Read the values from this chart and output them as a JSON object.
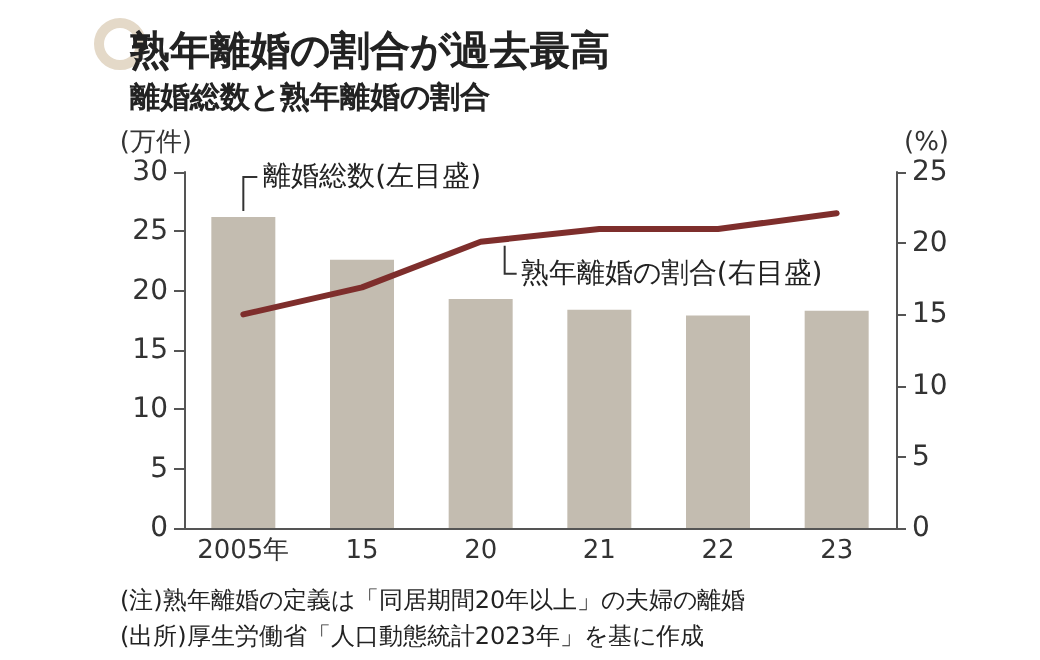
{
  "chart_data": {
    "type": "bar",
    "title": "熟年離婚の割合が過去最高",
    "subtitle": "離婚総数と熟年離婚の割合",
    "ylabel": "(万件)",
    "y2label": "(%)",
    "categories": [
      "2005年",
      "15",
      "20",
      "21",
      "22",
      "23"
    ],
    "series": [
      {
        "name": "離婚総数(左目盛)",
        "color": "#c3bcb0",
        "values": [
          26.2,
          22.6,
          19.3,
          18.4,
          17.9,
          18.3
        ]
      },
      {
        "name": "熟年離婚の割合(右目盛)",
        "type": "line",
        "axis": "y2",
        "color": "#7e2e2c",
        "values": [
          15.0,
          16.9,
          20.1,
          21.0,
          21.0,
          22.1
        ]
      }
    ],
    "ylim": [
      0,
      30
    ],
    "yticks": [
      0,
      5,
      10,
      15,
      20,
      25,
      30
    ],
    "y2lim": [
      0,
      25
    ],
    "y2ticks": [
      0,
      5,
      10,
      15,
      20,
      25
    ],
    "grid": false,
    "legend": false,
    "marker": "none",
    "line_style": "solid",
    "annotations": [
      "(注)熟年離婚の定義は「同居期間20年以上」の夫婦の離婚",
      "(出所)厚生労働省「人口動態統計2023年」を基に作成"
    ]
  }
}
